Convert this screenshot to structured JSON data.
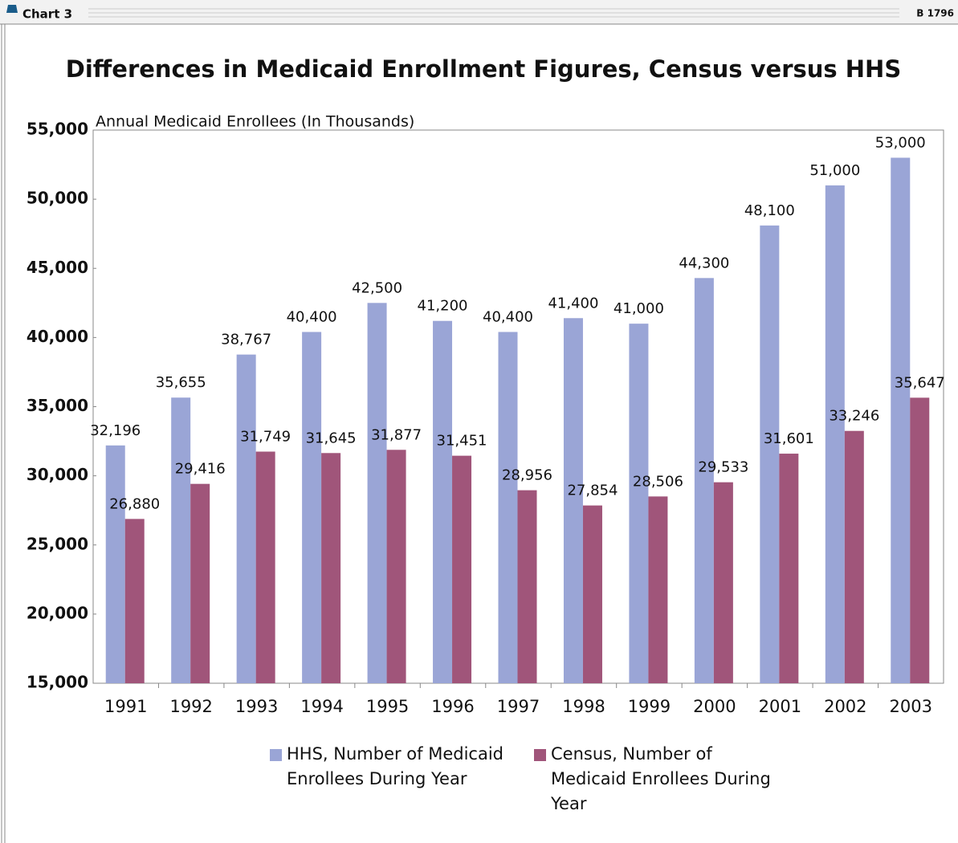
{
  "header": {
    "label": "Chart 3",
    "code": "B 1796"
  },
  "chart_data": {
    "type": "bar",
    "title": "Differences in Medicaid Enrollment Figures, Census versus HHS",
    "y_label": "Annual Medicaid Enrollees (In Thousands)",
    "categories": [
      "1991",
      "1992",
      "1993",
      "1994",
      "1995",
      "1996",
      "1997",
      "1998",
      "1999",
      "2000",
      "2001",
      "2002",
      "2003"
    ],
    "series": [
      {
        "name": "HHS, Number of Medicaid Enrollees During Year",
        "color": "#9aa5d6",
        "values": [
          32196,
          35655,
          38767,
          40400,
          42500,
          41200,
          40400,
          41400,
          41000,
          44300,
          48100,
          51000,
          53000
        ],
        "value_labels": [
          "32,196",
          "35,655",
          "38,767",
          "40,400",
          "42,500",
          "41,200",
          "40,400",
          "41,400",
          "41,000",
          "44,300",
          "48,100",
          "51,000",
          "53,000"
        ]
      },
      {
        "name": "Census, Number of Medicaid Enrollees During Year",
        "color": "#a0557a",
        "values": [
          26880,
          29416,
          31749,
          31645,
          31877,
          31451,
          28956,
          27854,
          28506,
          29533,
          31601,
          33246,
          35647
        ],
        "value_labels": [
          "26,880",
          "29,416",
          "31,749",
          "31,645",
          "31,877",
          "31,451",
          "28,956",
          "27,854",
          "28,506",
          "29,533",
          "31,601",
          "33,246",
          "35,647"
        ]
      }
    ],
    "ylim": [
      15000,
      55000
    ],
    "yticks": [
      {
        "value": 15000,
        "label": "15,000"
      },
      {
        "value": 20000,
        "label": "20,000"
      },
      {
        "value": 25000,
        "label": "25,000"
      },
      {
        "value": 30000,
        "label": "30,000"
      },
      {
        "value": 35000,
        "label": "35,000"
      },
      {
        "value": 40000,
        "label": "40,000"
      },
      {
        "value": 45000,
        "label": "45,000"
      },
      {
        "value": 50000,
        "label": "50,000"
      },
      {
        "value": 55000,
        "label": "55,000"
      }
    ],
    "grid": false
  }
}
